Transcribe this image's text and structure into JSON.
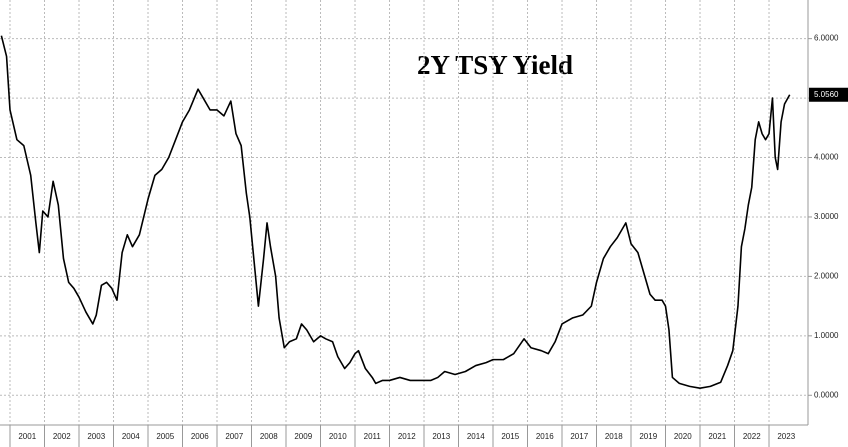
{
  "chart_data": {
    "type": "line",
    "title": "2Y TSY Yield",
    "series": [
      {
        "name": "2Y TSY Yield",
        "color": "#000000",
        "x": [
          2000.75,
          2000.9,
          2001.0,
          2001.2,
          2001.4,
          2001.6,
          2001.75,
          2001.85,
          2001.95,
          2002.1,
          2002.25,
          2002.4,
          2002.55,
          2002.7,
          2002.85,
          2003.0,
          2003.2,
          2003.4,
          2003.5,
          2003.65,
          2003.8,
          2003.95,
          2004.1,
          2004.25,
          2004.4,
          2004.55,
          2004.75,
          2005.0,
          2005.2,
          2005.4,
          2005.6,
          2005.8,
          2006.0,
          2006.2,
          2006.45,
          2006.6,
          2006.8,
          2007.0,
          2007.2,
          2007.4,
          2007.55,
          2007.7,
          2007.85,
          2007.95,
          2008.1,
          2008.2,
          2008.35,
          2008.45,
          2008.55,
          2008.7,
          2008.8,
          2008.95,
          2009.1,
          2009.3,
          2009.45,
          2009.6,
          2009.8,
          2010.0,
          2010.15,
          2010.35,
          2010.5,
          2010.7,
          2010.85,
          2011.0,
          2011.1,
          2011.3,
          2011.5,
          2011.6,
          2011.8,
          2012.0,
          2012.3,
          2012.6,
          2012.9,
          2013.2,
          2013.4,
          2013.6,
          2013.9,
          2014.2,
          2014.5,
          2014.8,
          2015.0,
          2015.3,
          2015.6,
          2015.9,
          2016.1,
          2016.4,
          2016.6,
          2016.8,
          2017.0,
          2017.3,
          2017.6,
          2017.85,
          2018.0,
          2018.2,
          2018.4,
          2018.6,
          2018.85,
          2019.0,
          2019.2,
          2019.4,
          2019.55,
          2019.7,
          2019.9,
          2020.0,
          2020.1,
          2020.2,
          2020.4,
          2020.7,
          2021.0,
          2021.3,
          2021.6,
          2021.8,
          2021.95,
          2022.1,
          2022.2,
          2022.3,
          2022.4,
          2022.5,
          2022.6,
          2022.7,
          2022.8,
          2022.9,
          2023.0,
          2023.1,
          2023.18,
          2023.25,
          2023.35,
          2023.45,
          2023.6
        ],
        "values": [
          6.05,
          5.7,
          4.8,
          4.3,
          4.2,
          3.7,
          2.9,
          2.4,
          3.1,
          3.0,
          3.6,
          3.2,
          2.3,
          1.9,
          1.8,
          1.65,
          1.4,
          1.2,
          1.35,
          1.85,
          1.9,
          1.8,
          1.6,
          2.4,
          2.7,
          2.5,
          2.7,
          3.3,
          3.7,
          3.8,
          4.0,
          4.3,
          4.6,
          4.8,
          5.15,
          5.0,
          4.8,
          4.8,
          4.7,
          4.95,
          4.4,
          4.2,
          3.4,
          3.0,
          2.1,
          1.5,
          2.3,
          2.9,
          2.5,
          2.0,
          1.3,
          0.8,
          0.9,
          0.95,
          1.2,
          1.1,
          0.9,
          1.0,
          0.95,
          0.9,
          0.65,
          0.45,
          0.55,
          0.7,
          0.75,
          0.45,
          0.3,
          0.2,
          0.25,
          0.25,
          0.3,
          0.25,
          0.25,
          0.25,
          0.3,
          0.4,
          0.35,
          0.4,
          0.5,
          0.55,
          0.6,
          0.6,
          0.7,
          0.95,
          0.8,
          0.75,
          0.7,
          0.9,
          1.2,
          1.3,
          1.35,
          1.5,
          1.9,
          2.3,
          2.5,
          2.65,
          2.9,
          2.55,
          2.4,
          2.0,
          1.7,
          1.6,
          1.6,
          1.5,
          1.1,
          0.3,
          0.2,
          0.15,
          0.12,
          0.15,
          0.22,
          0.5,
          0.75,
          1.5,
          2.5,
          2.8,
          3.2,
          3.5,
          4.3,
          4.6,
          4.4,
          4.3,
          4.4,
          5.0,
          4.0,
          3.8,
          4.6,
          4.9,
          5.056
        ]
      }
    ],
    "last_value": {
      "value": 5.056,
      "label": "5.0560"
    },
    "xlim": [
      2000.71,
      2024.13
    ],
    "xticks": [
      2001,
      2002,
      2003,
      2004,
      2005,
      2006,
      2007,
      2008,
      2009,
      2010,
      2011,
      2012,
      2013,
      2014,
      2015,
      2016,
      2017,
      2018,
      2019,
      2020,
      2021,
      2022,
      2023
    ],
    "ylim": [
      -0.5,
      6.65
    ],
    "yticks": [
      {
        "value": 0,
        "label": "0.0000"
      },
      {
        "value": 1,
        "label": "1.0000"
      },
      {
        "value": 2,
        "label": "2.0000"
      },
      {
        "value": 3,
        "label": "3.0000"
      },
      {
        "value": 4,
        "label": "4.0000"
      },
      {
        "value": 5,
        "label": "5.0000"
      },
      {
        "value": 6,
        "label": "6.0000"
      }
    ],
    "grid": true
  }
}
